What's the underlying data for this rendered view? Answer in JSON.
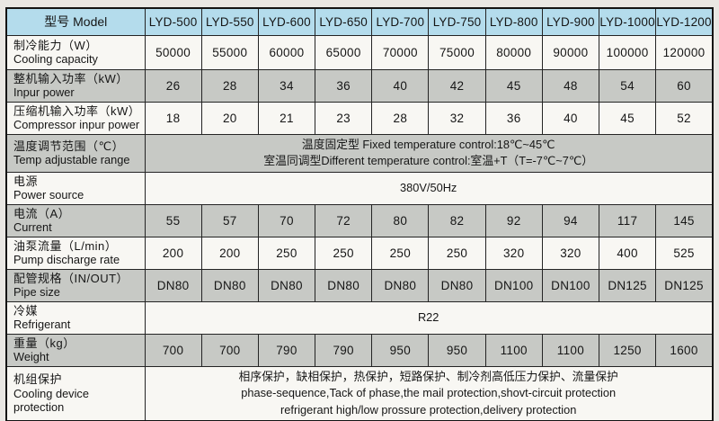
{
  "colors": {
    "page_bg": "#e9e7e3",
    "header_bg": "#b4dcec",
    "gray_row_bg": "#c7c9c5",
    "light_row_bg": "#f8f7f3",
    "border": "#242424"
  },
  "header": {
    "label": "型号 Model",
    "models": [
      "LYD-500",
      "LYD-550",
      "LYD-600",
      "LYD-650",
      "LYD-700",
      "LYD-750",
      "LYD-800",
      "LYD-900",
      "LYD-1000",
      "LYD-1200"
    ]
  },
  "rows": [
    {
      "zh": "制冷能力（W）",
      "en": "Cooling capacity",
      "values": [
        "50000",
        "55000",
        "60000",
        "65000",
        "70000",
        "75000",
        "80000",
        "90000",
        "100000",
        "120000"
      ]
    },
    {
      "zh": "整机输入功率（kW）",
      "en": "Inpur power",
      "values": [
        "26",
        "28",
        "34",
        "36",
        "40",
        "42",
        "45",
        "48",
        "54",
        "60"
      ]
    },
    {
      "zh": "压缩机输入功率（kW）",
      "en": "Compressor inpur power",
      "values": [
        "18",
        "20",
        "21",
        "23",
        "28",
        "32",
        "36",
        "40",
        "45",
        "52"
      ]
    },
    {
      "zh": "温度调节范围（℃）",
      "en": "Temp adjustable range",
      "lines": [
        "温度固定型 Fixed temperature control:18℃~45℃",
        "室温同调型Different temperature control:室温+T（T=-7℃~7℃）"
      ]
    },
    {
      "zh": "电源",
      "en": "Power source",
      "lines": [
        "380V/50Hz"
      ]
    },
    {
      "zh": "电流（A）",
      "en": "Current",
      "values": [
        "55",
        "57",
        "70",
        "72",
        "80",
        "82",
        "92",
        "94",
        "117",
        "145"
      ]
    },
    {
      "zh": "油泵流量（L/min）",
      "en": "Pump discharge rate",
      "values": [
        "200",
        "200",
        "250",
        "250",
        "250",
        "250",
        "320",
        "320",
        "400",
        "525"
      ]
    },
    {
      "zh": "配管规格（IN/OUT）",
      "en": "Pipe size",
      "values": [
        "DN80",
        "DN80",
        "DN80",
        "DN80",
        "DN80",
        "DN80",
        "DN100",
        "DN100",
        "DN125",
        "DN125"
      ]
    },
    {
      "zh": "冷媒",
      "en": "Refrigerant",
      "lines": [
        "R22"
      ]
    },
    {
      "zh": "重量（kg）",
      "en": "Weight",
      "values": [
        "700",
        "700",
        "790",
        "790",
        "950",
        "950",
        "1100",
        "1100",
        "1250",
        "1600"
      ]
    },
    {
      "zh": "机组保护",
      "en": "Cooling device protection",
      "lines": [
        "相序保护，缺相保护，热保护，短路保护、制冷剂高低压力保护、流量保护",
        "phase-sequence,Tack of phase,the mail protection,shovt-circuit protection",
        "refrigerant high/low prossure protection,delivery protection"
      ]
    }
  ],
  "chart_data": {
    "type": "table",
    "title": "LYD series cooling unit specifications",
    "categories": [
      "LYD-500",
      "LYD-550",
      "LYD-600",
      "LYD-650",
      "LYD-700",
      "LYD-750",
      "LYD-800",
      "LYD-900",
      "LYD-1000",
      "LYD-1200"
    ],
    "series": [
      {
        "name": "Cooling capacity (W)",
        "values": [
          50000,
          55000,
          60000,
          65000,
          70000,
          75000,
          80000,
          90000,
          100000,
          120000
        ]
      },
      {
        "name": "Input power (kW)",
        "values": [
          26,
          28,
          34,
          36,
          40,
          42,
          45,
          48,
          54,
          60
        ]
      },
      {
        "name": "Compressor input power (kW)",
        "values": [
          18,
          20,
          21,
          23,
          28,
          32,
          36,
          40,
          45,
          52
        ]
      },
      {
        "name": "Current (A)",
        "values": [
          55,
          57,
          70,
          72,
          80,
          82,
          92,
          94,
          117,
          145
        ]
      },
      {
        "name": "Pump discharge rate (L/min)",
        "values": [
          200,
          200,
          250,
          250,
          250,
          250,
          320,
          320,
          400,
          525
        ]
      },
      {
        "name": "Pipe size (IN/OUT)",
        "values": [
          "DN80",
          "DN80",
          "DN80",
          "DN80",
          "DN80",
          "DN80",
          "DN100",
          "DN100",
          "DN125",
          "DN125"
        ]
      },
      {
        "name": "Weight (kg)",
        "values": [
          700,
          700,
          790,
          790,
          950,
          950,
          1100,
          1100,
          1250,
          1600
        ]
      }
    ]
  }
}
